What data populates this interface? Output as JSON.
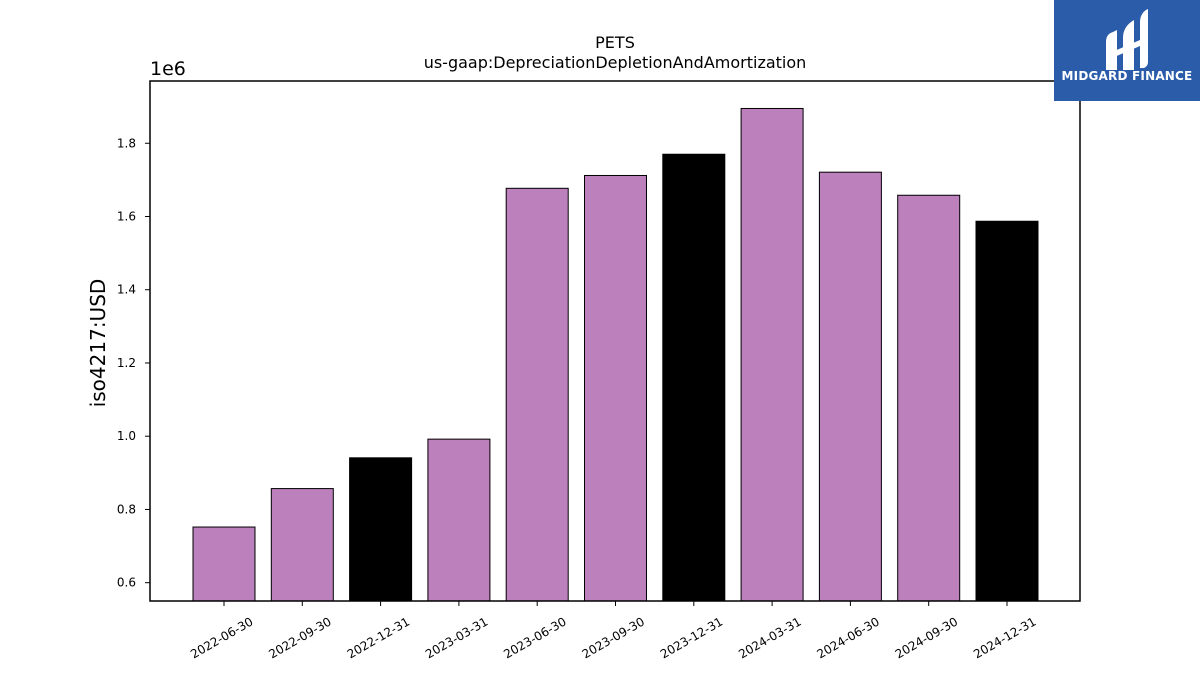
{
  "chart_data": {
    "type": "bar",
    "title": "PETS",
    "subtitle": "us-gaap:DepreciationDepletionAndAmortization",
    "xlabel": "",
    "ylabel": "iso4217:USD",
    "y_scale_label": "1e6",
    "ylim": [
      0.55,
      1.97
    ],
    "yticks": [
      0.6,
      0.8,
      1.0,
      1.2,
      1.4,
      1.6,
      1.8
    ],
    "categories": [
      "2022-06-30",
      "2022-09-30",
      "2022-12-31",
      "2023-03-31",
      "2023-06-30",
      "2023-09-30",
      "2023-12-31",
      "2024-03-31",
      "2024-06-30",
      "2024-09-30",
      "2024-12-31"
    ],
    "values": [
      0.752,
      0.857,
      0.941,
      0.992,
      1.677,
      1.712,
      1.77,
      1.895,
      1.721,
      1.658,
      1.587
    ],
    "value_unit_multiplier": 1000000,
    "bar_colors": [
      "#bc80bd",
      "#bc80bd",
      "#000000",
      "#bc80bd",
      "#bc80bd",
      "#bc80bd",
      "#000000",
      "#bc80bd",
      "#bc80bd",
      "#bc80bd",
      "#000000"
    ],
    "grid": false,
    "legend": "none"
  },
  "logo": {
    "text": "MIDGARD FINANCE",
    "background": "#2a5caa"
  }
}
